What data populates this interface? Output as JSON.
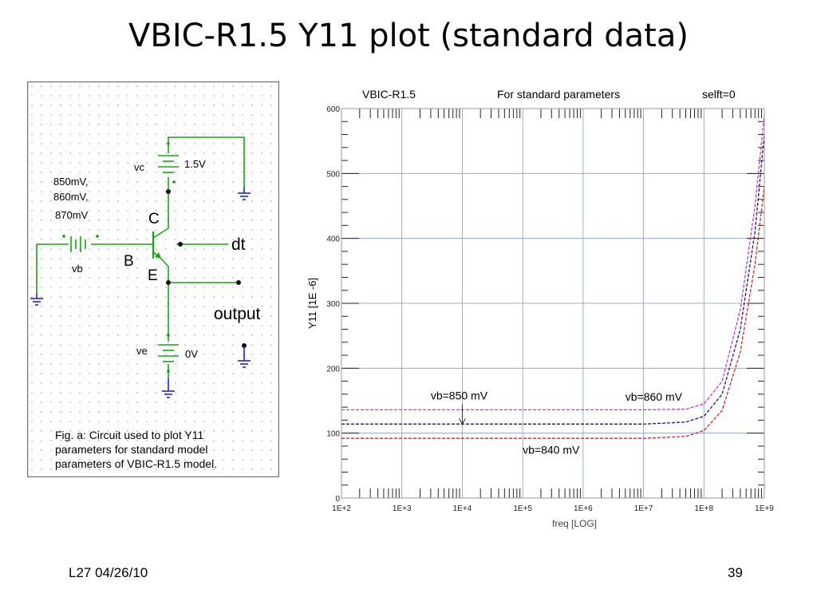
{
  "slide": {
    "title": "VBIC-R1.5 Y11 plot (standard data)",
    "footer_left": "L27 04/26/10",
    "page_number": "39"
  },
  "circuit": {
    "vc_label": "vc",
    "vc_value": "1.5V",
    "vb_values": [
      "850mV,",
      "860mV,",
      "870mV"
    ],
    "vb_label": "vb",
    "node_c": "C",
    "node_b": "B",
    "node_e": "E",
    "dt_label": "dt",
    "output_label": "output",
    "ve_label": "ve",
    "ve_value": "0V",
    "caption": [
      "Fig. a: Circuit used to plot Y11",
      "parameters for standard model",
      "parameters of VBIC-R1.5 model."
    ],
    "colors": {
      "wire": "#11aa11",
      "ground": "#2222dd",
      "dot": "#119911",
      "border": "#777777"
    }
  },
  "chart_data": {
    "type": "line",
    "header": {
      "left": "VBIC-R1.5",
      "center": "For standard parameters",
      "right": "selft=0"
    },
    "xlabel": "freq  [LOG]",
    "ylabel": "Y11 [1E -6]",
    "x_scale": "log",
    "xlim": [
      100,
      1000000000
    ],
    "ylim": [
      0,
      600
    ],
    "x_ticks": [
      100,
      1000,
      10000,
      100000,
      1000000,
      10000000,
      100000000,
      1000000000
    ],
    "x_tick_labels": [
      "1E+2",
      "1E+3",
      "1E+4",
      "1E+5",
      "1E+6",
      "1E+7",
      "1E+8",
      "1E+9"
    ],
    "y_ticks": [
      0,
      100,
      200,
      300,
      400,
      500,
      600
    ],
    "y_tick_labels": [
      "0",
      "100",
      "200",
      "300",
      "400",
      "500",
      "600"
    ],
    "grid": true,
    "series": [
      {
        "color": "#cc33cc",
        "x": [
          100,
          10000000,
          50000000,
          100000000,
          200000000,
          400000000,
          700000000,
          1000000000
        ],
        "values": [
          136,
          136,
          137,
          145,
          180,
          290,
          450,
          590
        ]
      },
      {
        "color": "#1a1a66",
        "x": [
          100,
          10000000,
          50000000,
          100000000,
          200000000,
          400000000,
          700000000,
          1000000000
        ],
        "values": [
          114,
          114,
          117,
          126,
          160,
          260,
          410,
          560
        ]
      },
      {
        "color": "#dd2222",
        "x": [
          100,
          10000000,
          50000000,
          100000000,
          200000000,
          400000000,
          700000000,
          1000000000
        ],
        "values": [
          92,
          92,
          95,
          104,
          135,
          225,
          360,
          480
        ]
      }
    ],
    "annotations": [
      {
        "text": "vb=850 mV",
        "x": 3000,
        "y": 152
      },
      {
        "text": "vb=860 mV",
        "x": 5000000,
        "y": 150
      },
      {
        "text": "vb=840 mV",
        "x": 100000,
        "y": 68
      }
    ],
    "arrow": {
      "x": 10000,
      "y_from": 144,
      "y_to": 114
    }
  }
}
